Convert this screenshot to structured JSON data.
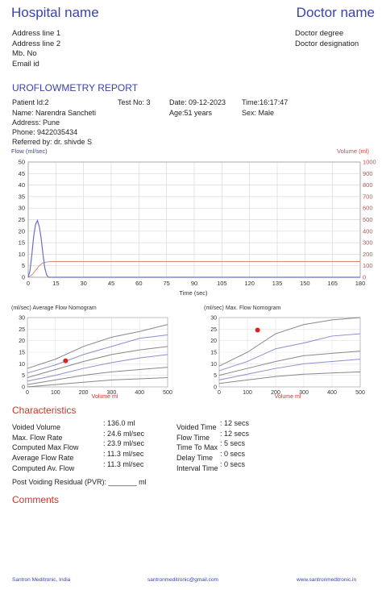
{
  "header": {
    "hospital_name": "Hospital name",
    "doctor_name": "Doctor name",
    "address": [
      "Address line 1",
      "Address line 2",
      "Mb. No",
      "Email id"
    ],
    "doctor_info": [
      "Doctor degree",
      "Doctor designation"
    ]
  },
  "report_title": "UROFLOWMETRY REPORT",
  "patient": {
    "id": "Patient Id:2",
    "test_no": "Test No: 3",
    "date": "Date: 09-12-2023",
    "time": "Time:16:17:47",
    "name": "Name: Narendra  Sancheti",
    "age": "Age:51 years",
    "sex": "Sex: Male",
    "address": "Address: Pune",
    "phone": "Phone: 9422035434",
    "referred": "Referred by: dr. shivde S"
  },
  "colors": {
    "accent": "#3a43a8",
    "volume": "#c0504d",
    "flow": "#6b6fc0",
    "marker": "#e02020"
  },
  "chart_data": [
    {
      "type": "line",
      "title": "",
      "ylabel": "Flow (ml/sec)",
      "y2label": "Volume (ml)",
      "xlabel": "Time (sec)",
      "xticks": [
        "0",
        "15",
        "30",
        "45",
        "60",
        "75",
        "90",
        "105",
        "120",
        "135",
        "150",
        "165",
        "180"
      ],
      "yticks": [
        "0",
        "5",
        "10",
        "15",
        "20",
        "25",
        "30",
        "35",
        "40",
        "45",
        "50"
      ],
      "y2ticks": [
        "0",
        "100",
        "200",
        "300",
        "400",
        "500",
        "600",
        "700",
        "800",
        "900",
        "1000"
      ],
      "xlim": [
        0,
        180
      ],
      "ylim": [
        0,
        50
      ],
      "y2lim": [
        0,
        1000
      ],
      "series": [
        {
          "axis": "flow",
          "x": [
            0,
            1,
            2,
            3,
            4,
            5,
            6,
            7,
            8,
            9,
            10,
            11,
            12,
            13,
            14,
            180
          ],
          "y": [
            0,
            3,
            10,
            18,
            23,
            24.6,
            22,
            17,
            10,
            4,
            1,
            0,
            0,
            0,
            0,
            0
          ]
        },
        {
          "axis": "volume",
          "x": [
            0,
            2,
            4,
            6,
            8,
            10,
            12,
            14,
            180
          ],
          "y": [
            0,
            20,
            60,
            100,
            125,
            133,
            136,
            136,
            136
          ]
        }
      ]
    },
    {
      "type": "line",
      "title": "(ml/sec) Average Flow Nomogram",
      "xlabel": "Volume ml",
      "xticks": [
        "0",
        "100",
        "200",
        "300",
        "400",
        "500"
      ],
      "yticks": [
        "0",
        "5",
        "10",
        "15",
        "20",
        "25",
        "30"
      ],
      "xlim": [
        0,
        500
      ],
      "ylim": [
        0,
        30
      ],
      "curves": [
        {
          "x": [
            0,
            100,
            200,
            300,
            400,
            500
          ],
          "y": [
            8,
            12,
            17.5,
            21.5,
            24,
            27
          ]
        },
        {
          "x": [
            0,
            100,
            200,
            300,
            400,
            500
          ],
          "y": [
            6,
            9.5,
            14,
            17.5,
            21,
            22.5
          ]
        },
        {
          "x": [
            0,
            100,
            200,
            300,
            400,
            500
          ],
          "y": [
            4,
            7.5,
            11,
            14,
            16,
            17.5
          ]
        },
        {
          "x": [
            0,
            100,
            200,
            300,
            400,
            500
          ],
          "y": [
            2.5,
            5,
            8,
            10.5,
            12.5,
            14
          ]
        },
        {
          "x": [
            0,
            100,
            200,
            300,
            400,
            500
          ],
          "y": [
            1,
            3,
            5,
            6.5,
            7.5,
            8.5
          ]
        },
        {
          "x": [
            0,
            100,
            200,
            300,
            400,
            500
          ],
          "y": [
            0,
            1,
            2,
            3,
            3.5,
            4
          ]
        }
      ],
      "point": {
        "x": 136,
        "y": 11.3
      }
    },
    {
      "type": "line",
      "title": "(ml/sec) Max. Flow Nomogram",
      "xlabel": "Volume ml",
      "xticks": [
        "0",
        "100",
        "200",
        "300",
        "400",
        "500"
      ],
      "yticks": [
        "0",
        "5",
        "10",
        "15",
        "20",
        "25",
        "30"
      ],
      "xlim": [
        0,
        500
      ],
      "ylim": [
        0,
        30
      ],
      "curves": [
        {
          "x": [
            0,
            100,
            200,
            300,
            400,
            500
          ],
          "y": [
            9,
            15,
            23,
            27,
            29,
            30
          ]
        },
        {
          "x": [
            0,
            100,
            200,
            300,
            400,
            500
          ],
          "y": [
            7,
            11,
            16.5,
            19,
            22,
            23
          ]
        },
        {
          "x": [
            0,
            100,
            200,
            300,
            400,
            500
          ],
          "y": [
            5,
            8,
            11,
            13.5,
            14.5,
            15.5
          ]
        },
        {
          "x": [
            0,
            100,
            200,
            300,
            400,
            500
          ],
          "y": [
            3,
            5.5,
            8,
            10,
            11,
            12
          ]
        },
        {
          "x": [
            0,
            100,
            200,
            300,
            400,
            500
          ],
          "y": [
            1.5,
            3,
            4.5,
            5.5,
            6,
            6.5
          ]
        }
      ],
      "point": {
        "x": 136,
        "y": 24.6
      }
    }
  ],
  "characteristics": {
    "heading": "Characteristics",
    "left": [
      {
        "label": "Voided Volume",
        "value": ": 136.0 ml"
      },
      {
        "label": "Max. Flow Rate",
        "value": ": 24.6 ml/sec"
      },
      {
        "label": "Computed Max Flow",
        "value": ": 23.9 ml/sec"
      },
      {
        "label": "Average Flow Rate",
        "value": ": 11.3 ml/sec"
      },
      {
        "label": "Computed Av. Flow",
        "value": ": 11.3 ml/sec"
      }
    ],
    "right": [
      {
        "label": "Voided Time",
        "value": ": 12 secs"
      },
      {
        "label": "Flow Time",
        "value": ": 12 secs"
      },
      {
        "label": "Time To Max",
        "value": ": 5 secs"
      },
      {
        "label": "Delay Time",
        "value": ": 0 secs"
      },
      {
        "label": "Interval Time",
        "value": ": 0 secs"
      }
    ],
    "pvr": "Post Voiding Residual (PVR): _______ ml"
  },
  "comments_heading": "Comments",
  "footer": {
    "left": "Santron Meditronic, India",
    "center": "santronmeditronic@gmail.com",
    "right": "www.santronmeditronic.in"
  }
}
